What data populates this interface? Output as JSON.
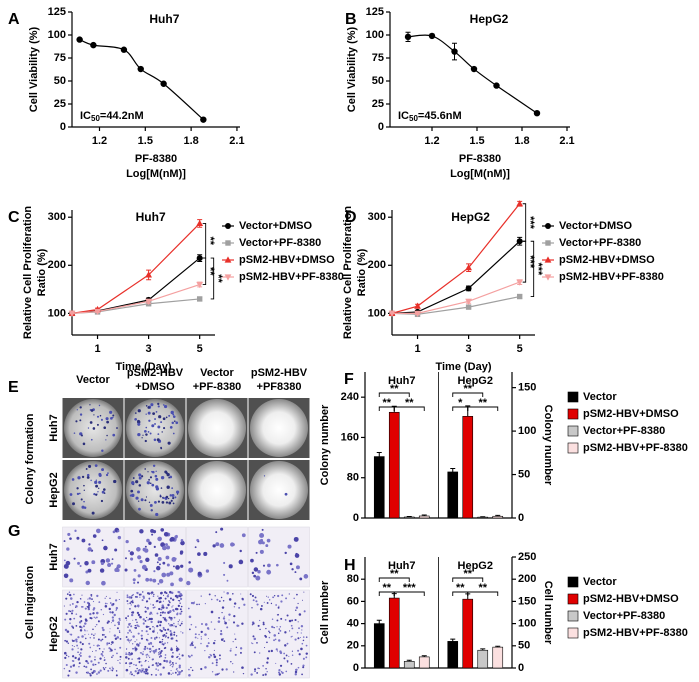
{
  "panel_labels": [
    "A",
    "B",
    "C",
    "D",
    "E",
    "F",
    "G",
    "H"
  ],
  "chart_data": [
    {
      "type": "scatter",
      "title": "Huh7",
      "ylabel": "Cell Viability (%)",
      "xlabel": [
        "PF-8380",
        "Log[M(nM)]"
      ],
      "annotation": {
        "prefix": "IC",
        "sub": "50",
        "rest": "=44.2nM"
      },
      "x": [
        1.07,
        1.16,
        1.36,
        1.47,
        1.62,
        1.88
      ],
      "values": [
        95,
        89,
        84,
        63,
        47,
        8
      ],
      "xlim": [
        1.02,
        2.12
      ],
      "ylim": [
        0,
        125
      ],
      "xticks": [
        1.2,
        1.5,
        1.8,
        2.1
      ],
      "yticks": [
        0,
        25,
        50,
        75,
        100,
        125
      ],
      "color": "#000000",
      "fit_curve": true
    },
    {
      "type": "scatter",
      "title": "HepG2",
      "ylabel": "Cell Viability (%)",
      "xlabel": [
        "PF-8380",
        "Log[M(nM)]"
      ],
      "annotation": {
        "prefix": "IC",
        "sub": "50",
        "rest": "=45.6nM"
      },
      "x": [
        1.04,
        1.2,
        1.35,
        1.48,
        1.63,
        1.9
      ],
      "values": [
        98,
        99,
        82,
        63,
        45,
        15
      ],
      "errors": [
        5,
        0,
        9,
        0,
        0,
        0
      ],
      "xlim": [
        0.92,
        2.12
      ],
      "ylim": [
        0,
        125
      ],
      "xticks": [
        1.2,
        1.5,
        1.8,
        2.1
      ],
      "yticks": [
        0,
        25,
        50,
        75,
        100,
        125
      ],
      "color": "#000000",
      "fit_curve": true
    },
    {
      "type": "line",
      "title": "Huh7",
      "ylabel": [
        "Relative Cell Proliferation",
        "Ratio (%)"
      ],
      "xlabel": "Time (Day)",
      "x": [
        0,
        1,
        3,
        5
      ],
      "xlim": [
        0,
        5.6
      ],
      "ylim": [
        55,
        315
      ],
      "xticks": [
        1,
        3,
        5
      ],
      "yticks": [
        100,
        200,
        300
      ],
      "series": [
        {
          "name": "Vector+DMSO",
          "color": "#000000",
          "marker": "circle",
          "values": [
            100,
            105,
            128,
            215
          ],
          "errors": [
            0,
            3,
            4,
            7
          ]
        },
        {
          "name": "Vector+PF-8380",
          "color": "#a0a0a0",
          "marker": "square",
          "values": [
            100,
            103,
            120,
            130
          ],
          "errors": [
            0,
            2,
            3,
            4
          ]
        },
        {
          "name": "pSM2-HBV+DMSO",
          "color": "#e8302a",
          "marker": "triangle",
          "values": [
            100,
            108,
            180,
            287
          ],
          "errors": [
            0,
            3,
            10,
            8
          ]
        },
        {
          "name": "pSM2-HBV+PF-8380",
          "color": "#f4a0a0",
          "marker": "triangle-down",
          "values": [
            100,
            104,
            125,
            160
          ],
          "errors": [
            0,
            2,
            4,
            5
          ]
        }
      ],
      "annotations": [
        "**",
        "**",
        "**"
      ]
    },
    {
      "type": "line",
      "title": "HepG2",
      "ylabel": [
        "Relative Cell Proliferation",
        "Ratio (%)"
      ],
      "xlabel": "Time (Day)",
      "x": [
        0,
        1,
        3,
        5
      ],
      "xlim": [
        0,
        5.6
      ],
      "ylim": [
        55,
        315
      ],
      "xticks": [
        1,
        3,
        5
      ],
      "yticks": [
        100,
        200,
        300
      ],
      "series": [
        {
          "name": "Vector+DMSO",
          "color": "#000000",
          "marker": "circle",
          "values": [
            100,
            103,
            152,
            250
          ],
          "errors": [
            0,
            3,
            5,
            8
          ]
        },
        {
          "name": "Vector+PF-8380",
          "color": "#a0a0a0",
          "marker": "square",
          "values": [
            100,
            98,
            113,
            135
          ],
          "errors": [
            0,
            2,
            3,
            4
          ]
        },
        {
          "name": "pSM2-HBV+DMSO",
          "color": "#e8302a",
          "marker": "triangle",
          "values": [
            100,
            115,
            195,
            328
          ],
          "errors": [
            0,
            4,
            8,
            5
          ]
        },
        {
          "name": "pSM2-HBV+PF-8380",
          "color": "#f4a0a0",
          "marker": "triangle-down",
          "values": [
            100,
            100,
            125,
            165
          ],
          "errors": [
            0,
            2,
            4,
            5
          ]
        }
      ],
      "annotations": [
        "***",
        "***",
        "***"
      ]
    },
    {
      "type": "bar",
      "ylabel": "Colony number",
      "y2label": "Colony number",
      "categories": [
        "Huh7",
        "HepG2"
      ],
      "category_axis": [
        "y",
        "y2"
      ],
      "ylim": [
        0,
        290
      ],
      "yticks": [
        0,
        80,
        160,
        240
      ],
      "y2lim": [
        0,
        168
      ],
      "y2ticks": [
        0,
        50,
        100,
        150
      ],
      "series": [
        {
          "name": "Vector",
          "color": "#000000",
          "values": [
            122,
            53
          ],
          "errors": [
            8,
            4
          ]
        },
        {
          "name": "pSM2-HBV+DMSO",
          "color": "#e00000",
          "values": [
            210,
            117
          ],
          "errors": [
            12,
            12
          ]
        },
        {
          "name": "Vector+PF-8380",
          "color": "#c8c8c8",
          "values": [
            2,
            1
          ],
          "errors": [
            1,
            0.5
          ]
        },
        {
          "name": "pSM2-HBV+PF-8380",
          "color": "#fbe0e0",
          "values": [
            4,
            2
          ],
          "errors": [
            2,
            1
          ]
        }
      ],
      "annotations": [
        [
          "**",
          "**",
          "**"
        ],
        [
          "**",
          "*",
          "**"
        ]
      ]
    },
    {
      "type": "bar",
      "ylabel": "Cell number",
      "y2label": "Cell number",
      "categories": [
        "Huh7",
        "HepG2"
      ],
      "category_axis": [
        "y",
        "y2"
      ],
      "ylim": [
        0,
        100
      ],
      "yticks": [
        0,
        20,
        40,
        60,
        80
      ],
      "y2lim": [
        0,
        250
      ],
      "y2ticks": [
        0,
        50,
        100,
        150,
        200,
        250
      ],
      "series": [
        {
          "name": "Vector",
          "color": "#000000",
          "values": [
            40,
            60
          ],
          "errors": [
            3,
            5
          ]
        },
        {
          "name": "pSM2-HBV+DMSO",
          "color": "#e00000",
          "values": [
            63,
            155
          ],
          "errors": [
            4,
            12
          ]
        },
        {
          "name": "Vector+PF-8380",
          "color": "#c8c8c8",
          "values": [
            6,
            40
          ],
          "errors": [
            1,
            3
          ]
        },
        {
          "name": "pSM2-HBV+PF-8380",
          "color": "#fbe0e0",
          "values": [
            10,
            47
          ],
          "errors": [
            1,
            2
          ]
        }
      ],
      "annotations": [
        [
          "**",
          "**",
          "***"
        ],
        [
          "**",
          "**",
          "**"
        ]
      ]
    }
  ],
  "image_panels": [
    {
      "group_label": "Colony formation",
      "columns": [
        "Vector",
        [
          "pSM2-HBV",
          "+DMSO"
        ],
        [
          "Vector",
          "+PF-8380"
        ],
        [
          "pSM2-HBV",
          "+PF8380"
        ]
      ],
      "rows": [
        "Huh7",
        "HepG2"
      ]
    },
    {
      "group_label": "Cell migration",
      "rows": [
        "Huh7",
        "HepG2"
      ]
    }
  ]
}
